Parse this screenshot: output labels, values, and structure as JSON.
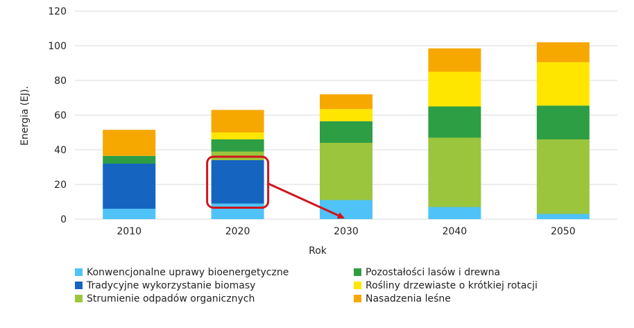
{
  "chart_data": {
    "type": "bar",
    "stacked": true,
    "categories": [
      "2010",
      "2020",
      "2030",
      "2040",
      "2050"
    ],
    "xlabel": "Rok",
    "ylabel": "Energia (EJ).",
    "ylim": [
      0,
      120
    ],
    "yticks": [
      0,
      20,
      40,
      60,
      80,
      100,
      120
    ],
    "grid": true,
    "legend_position": "bottom",
    "series": [
      {
        "name": "Konwencjonalne uprawy bioenergetyczne",
        "color": "#4fc3f7",
        "values": [
          6,
          9,
          11,
          7,
          3
        ]
      },
      {
        "name": "Tradycyjne wykorzystanie biomasy",
        "color": "#1565c0",
        "values": [
          26,
          25,
          0,
          0,
          0
        ]
      },
      {
        "name": "Strumienie odpadów organicznych",
        "color": "#9bc53d",
        "values": [
          0,
          5,
          33,
          40,
          43
        ]
      },
      {
        "name": "Pozostałości lasów i drewna",
        "color": "#2e9e44",
        "values": [
          4.5,
          7,
          12.5,
          18,
          19.5
        ]
      },
      {
        "name": "Rośliny drzewiaste o krótkiej rotacji",
        "color": "#ffe600",
        "values": [
          0,
          4,
          7,
          20,
          25
        ]
      },
      {
        "name": "Nasadzenia leśne",
        "color": "#f6a800",
        "values": [
          15,
          13,
          8.5,
          13.5,
          11.5
        ]
      }
    ],
    "annotations": [
      {
        "type": "highlight-box",
        "category": "2020",
        "series": "Tradycyjne wykorzystanie biomasy",
        "color": "#d0141e"
      },
      {
        "type": "arrow",
        "from_category": "2020",
        "to_category": "2030",
        "color": "#d0141e"
      }
    ]
  }
}
